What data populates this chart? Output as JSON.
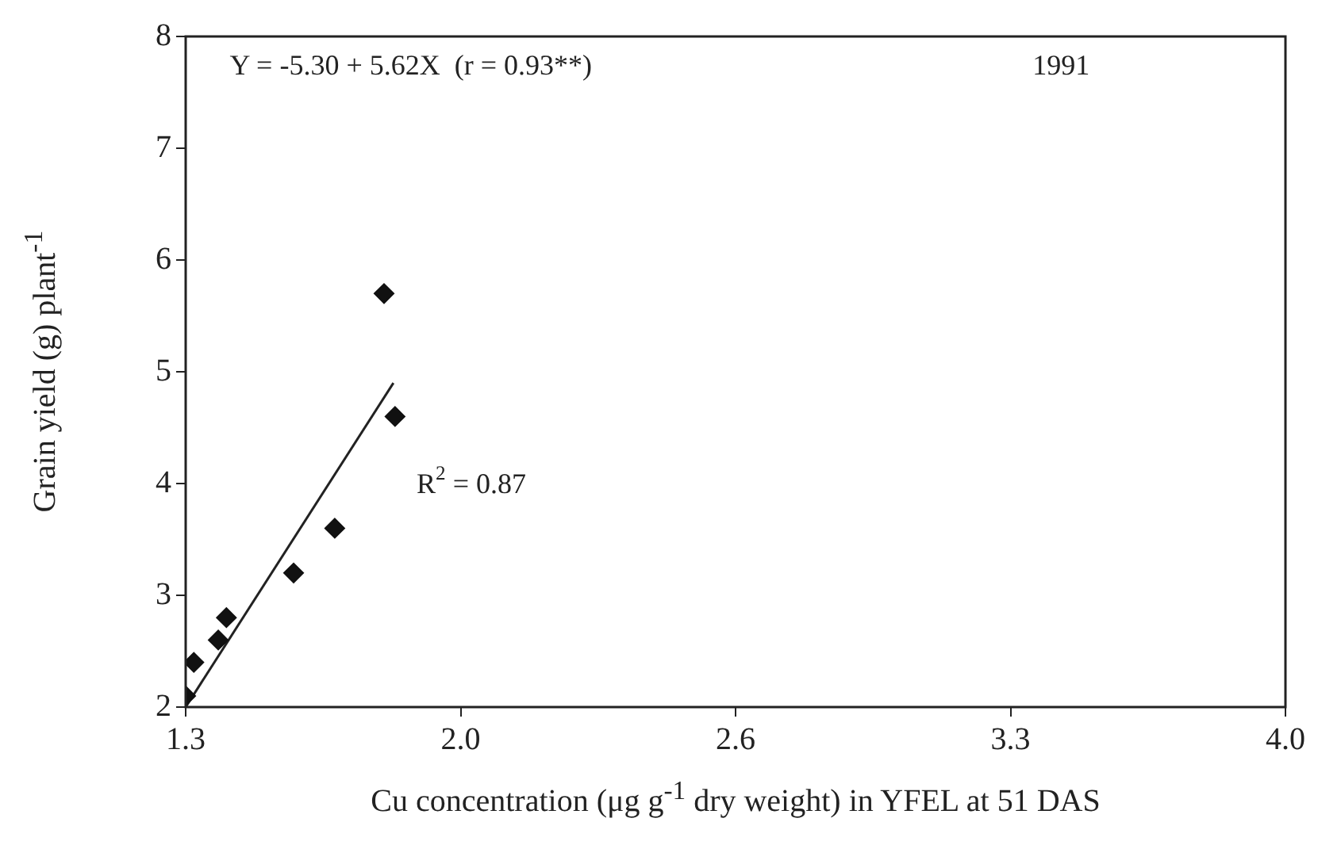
{
  "chart_data": {
    "type": "scatter",
    "xlabel": "Cu concentration (μg g$^{-1}$ dry weight) in YFEL at 51 DAS",
    "ylabel": "Grain yield (g) plant$^{-1}$",
    "annotations": [
      "Y = -5.30 + 5.62X  (r = 0.93**)",
      "1991",
      "R$^{2}$ = 0.87"
    ],
    "xlim": [
      1.3,
      4.0
    ],
    "xticks": [
      1.3,
      {
        "value": 1.975,
        "label": "2.0"
      },
      {
        "value": 2.65,
        "label": "2.6"
      },
      {
        "value": 3.325,
        "label": "3.3"
      },
      {
        "value": 4,
        "label": "4.0"
      }
    ],
    "ylim": [
      2,
      8
    ],
    "yticks": [
      2,
      3,
      4,
      5,
      6,
      7,
      8
    ],
    "series": [
      {
        "type": "scatter",
        "marker": "diamond",
        "color": "#111111",
        "x": [
          1.3,
          1.32,
          1.38,
          1.4,
          1.565,
          1.666,
          1.787,
          1.814
        ],
        "values": [
          2.1,
          2.4,
          2.6,
          2.8,
          3.2,
          3.6,
          5.7,
          4.6
        ]
      },
      {
        "type": "line",
        "color": "#222222",
        "x": [
          1.3,
          1.81
        ],
        "values": [
          2.0,
          4.9
        ]
      }
    ]
  }
}
